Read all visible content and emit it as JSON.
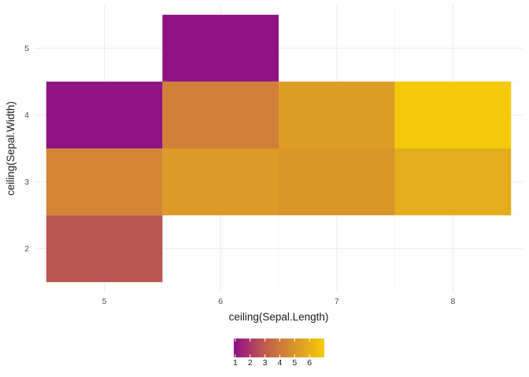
{
  "chart_data": {
    "type": "heatmap",
    "xlabel": "ceiling(Sepal.Length)",
    "ylabel": "ceiling(Sepal.Width)",
    "x_ticks": [
      5,
      6,
      7,
      8
    ],
    "y_ticks": [
      2,
      3,
      4,
      5
    ],
    "xlim": [
      4.4,
      8.6
    ],
    "ylim": [
      1.35,
      5.65
    ],
    "grid": true,
    "legend_position": "bottom",
    "legend_labels": [
      1,
      2,
      3,
      4,
      5,
      6
    ],
    "legend_range": [
      0.9,
      7.0
    ],
    "color_low": "#8E0F87",
    "color_high": "#F5CC06",
    "cells": [
      {
        "x": 5,
        "y": 2,
        "value": 2.8
      },
      {
        "x": 5,
        "y": 3,
        "value": 4.5
      },
      {
        "x": 5,
        "y": 4,
        "value": 1.0
      },
      {
        "x": 6,
        "y": 3,
        "value": 5.2
      },
      {
        "x": 6,
        "y": 4,
        "value": 4.3
      },
      {
        "x": 6,
        "y": 5,
        "value": 1.0
      },
      {
        "x": 7,
        "y": 3,
        "value": 5.0
      },
      {
        "x": 7,
        "y": 4,
        "value": 5.3
      },
      {
        "x": 8,
        "y": 3,
        "value": 5.9
      },
      {
        "x": 8,
        "y": 4,
        "value": 6.9
      }
    ]
  }
}
